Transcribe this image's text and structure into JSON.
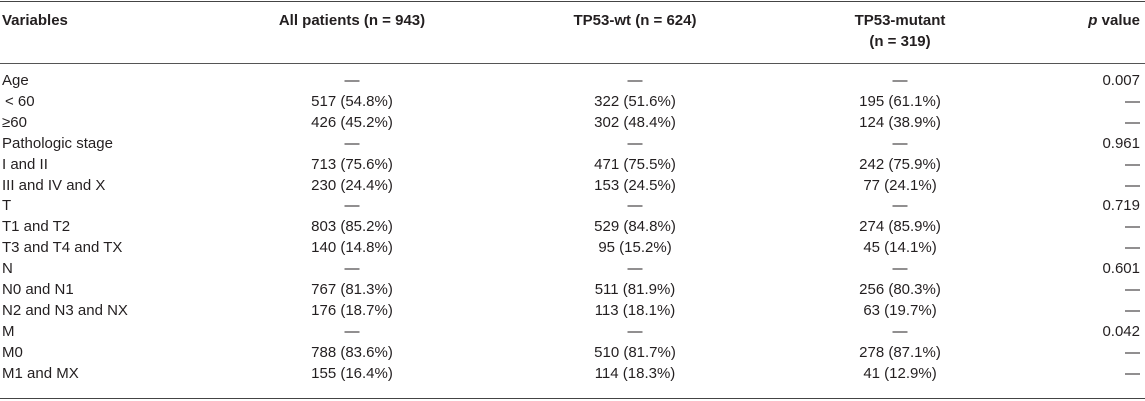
{
  "headers": {
    "variables": "Variables",
    "all": "All patients (n = 943)",
    "wt": "TP53-wt (n = 624)",
    "mutant_line1": "TP53-mutant",
    "mutant_line2": "(n = 319)",
    "p_italic": "p",
    "p_rest": " value"
  },
  "rows": [
    {
      "var": "Age",
      "all": "—",
      "wt": "—",
      "mut": "—",
      "p": "0.007"
    },
    {
      "var": " < 60",
      "all": "517 (54.8%)",
      "wt": "322 (51.6%)",
      "mut": "195 (61.1%)",
      "p": "—"
    },
    {
      "var": "≥60",
      "all": "426 (45.2%)",
      "wt": "302 (48.4%)",
      "mut": "124 (38.9%)",
      "p": "—"
    },
    {
      "var": "Pathologic stage",
      "all": "—",
      "wt": "—",
      "mut": "—",
      "p": "0.961"
    },
    {
      "var": "I and II",
      "all": "713 (75.6%)",
      "wt": "471 (75.5%)",
      "mut": "242 (75.9%)",
      "p": "—"
    },
    {
      "var": "III and IV and X",
      "all": "230 (24.4%)",
      "wt": "153 (24.5%)",
      "mut": "77 (24.1%)",
      "p": "—"
    },
    {
      "var": "T",
      "all": "—",
      "wt": "—",
      "mut": "—",
      "p": "0.719"
    },
    {
      "var": "T1 and T2",
      "all": "803 (85.2%)",
      "wt": "529 (84.8%)",
      "mut": "274 (85.9%)",
      "p": "—"
    },
    {
      "var": "T3 and T4 and TX",
      "all": "140 (14.8%)",
      "wt": "95 (15.2%)",
      "mut": "45 (14.1%)",
      "p": "—"
    },
    {
      "var": "N",
      "all": "—",
      "wt": "—",
      "mut": "—",
      "p": "0.601"
    },
    {
      "var": "N0 and N1",
      "all": "767 (81.3%)",
      "wt": "511 (81.9%)",
      "mut": "256 (80.3%)",
      "p": "—"
    },
    {
      "var": "N2 and N3 and NX",
      "all": "176 (18.7%)",
      "wt": "113 (18.1%)",
      "mut": "63 (19.7%)",
      "p": "—"
    },
    {
      "var": "M",
      "all": "—",
      "wt": "—",
      "mut": "—",
      "p": "0.042"
    },
    {
      "var": "M0",
      "all": "788 (83.6%)",
      "wt": "510 (81.7%)",
      "mut": "278 (87.1%)",
      "p": "—"
    },
    {
      "var": "M1 and MX",
      "all": "155 (16.4%)",
      "wt": "114 (18.3%)",
      "mut": "41 (12.9%)",
      "p": "—"
    }
  ]
}
